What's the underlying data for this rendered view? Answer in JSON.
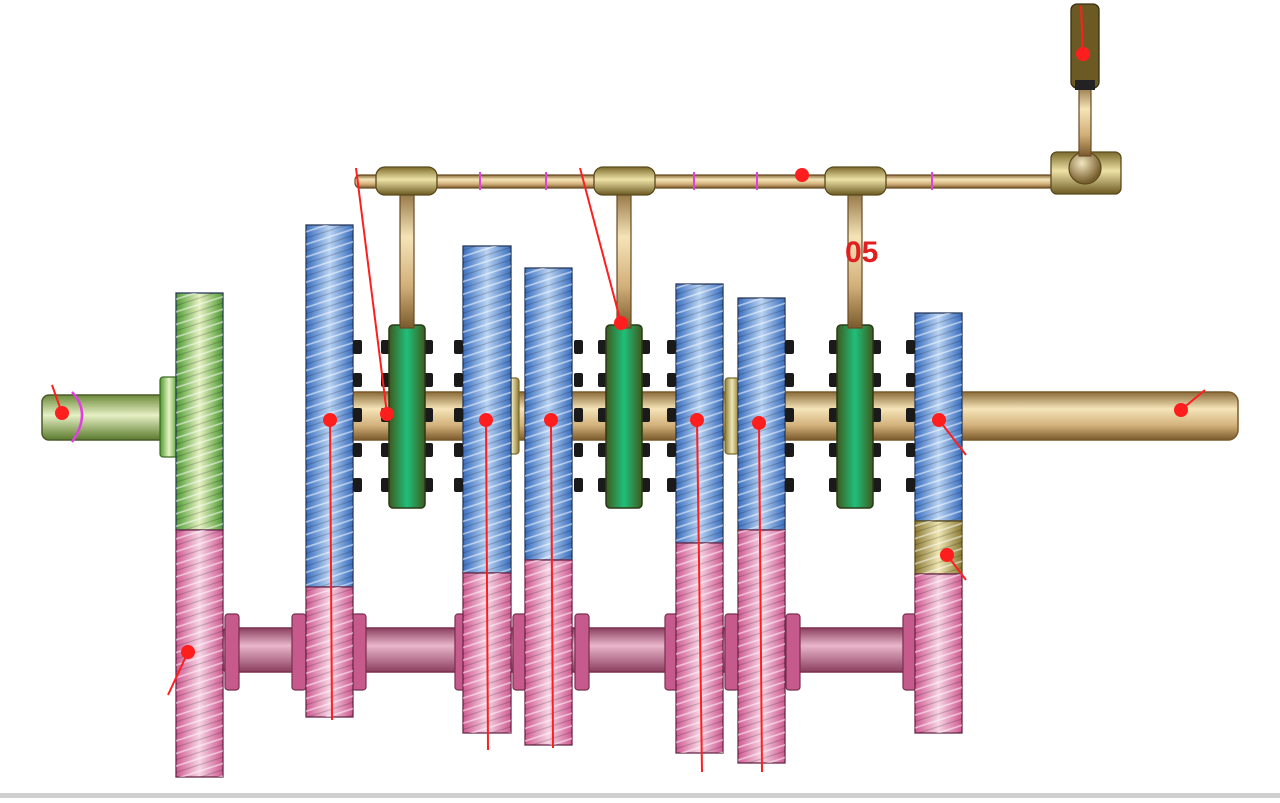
{
  "diagram": {
    "kind": "manual-gearbox-mechanism",
    "components": [
      "gear-lever",
      "selector-rod",
      "shift-fork",
      "synchronizer-hub",
      "main-shaft",
      "input-shaft",
      "countershaft",
      "main-gear",
      "counter-gear",
      "reverse-idler-gear"
    ],
    "fragment_label": "05",
    "colors": {
      "background": "#ffffff",
      "main_gear_blue": "#3f7fd0",
      "counter_gear_pink": "#d9669c",
      "input_gear_green": "#5fae3e",
      "sync_hub_green": "#1aa56c",
      "shaft_tan": "#c8a46a",
      "countershaft_pink": "#b86e8c",
      "idler_olive": "#a89a4c",
      "marker_red": "#ff1e1e",
      "tick_magenta": "#e040e0",
      "lever_brown": "#5a4a1c"
    }
  }
}
